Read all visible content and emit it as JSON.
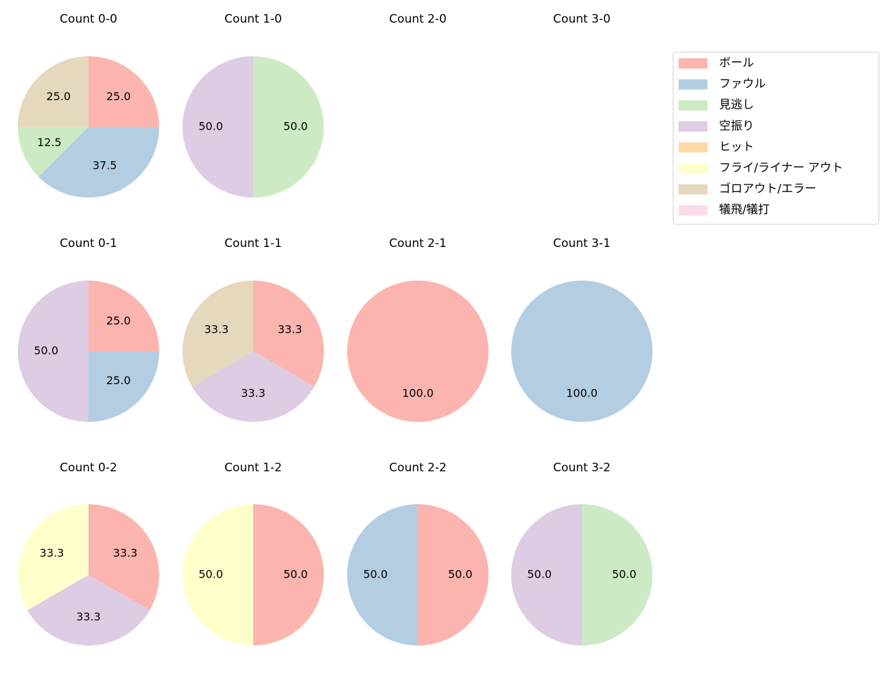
{
  "legend": {
    "position": "upper right",
    "labels": [
      "ボール",
      "ファウル",
      "見逃し",
      "空振り",
      "ヒット",
      "フライ/ライナー アウト",
      "ゴロアウト/エラー",
      "犠飛/犠打"
    ],
    "colors": [
      "#fbb4ae",
      "#b3cde3",
      "#ccebc5",
      "#decbe4",
      "#fed9a6",
      "#ffffcc",
      "#e5d8bd",
      "#fddaec"
    ]
  },
  "chart_data": [
    {
      "type": "pie",
      "title": "Count 0-0",
      "values": [
        25,
        37.5,
        12.5,
        0,
        0,
        0,
        25,
        0
      ],
      "value_labels": [
        "25.0",
        "37.5",
        "12.5",
        null,
        null,
        null,
        "25.0",
        null
      ]
    },
    {
      "type": "pie",
      "title": "Count 1-0",
      "values": [
        0,
        0,
        50,
        50,
        0,
        0,
        0,
        0
      ],
      "value_labels": [
        null,
        null,
        "50.0",
        "50.0",
        null,
        null,
        null,
        null
      ]
    },
    {
      "type": "pie",
      "title": "Count 2-0"
    },
    {
      "type": "pie",
      "title": "Count 3-0"
    },
    {
      "type": "pie",
      "title": "Count 0-1",
      "values": [
        25,
        25,
        0,
        50,
        0,
        0,
        0,
        0
      ],
      "value_labels": [
        "25.0",
        "25.0",
        null,
        "50.0",
        null,
        null,
        null,
        null
      ]
    },
    {
      "type": "pie",
      "title": "Count 1-1",
      "values": [
        33.3,
        0,
        0,
        33.3,
        0,
        0,
        33.3,
        0
      ],
      "value_labels": [
        "33.3",
        null,
        null,
        "33.3",
        null,
        null,
        "33.3",
        null
      ]
    },
    {
      "type": "pie",
      "title": "Count 2-1",
      "values": [
        100,
        0,
        0,
        0,
        0,
        0,
        0,
        0
      ],
      "value_labels": [
        "100.0",
        null,
        null,
        null,
        null,
        null,
        null,
        null
      ]
    },
    {
      "type": "pie",
      "title": "Count 3-1",
      "values": [
        0,
        100,
        0,
        0,
        0,
        0,
        0,
        0
      ],
      "value_labels": [
        null,
        "100.0",
        null,
        null,
        null,
        null,
        null,
        null
      ]
    },
    {
      "type": "pie",
      "title": "Count 0-2",
      "values": [
        33.3,
        0,
        0,
        33.3,
        0,
        33.3,
        0,
        0
      ],
      "value_labels": [
        "33.3",
        null,
        null,
        "33.3",
        null,
        "33.3",
        null,
        null
      ]
    },
    {
      "type": "pie",
      "title": "Count 1-2",
      "values": [
        50,
        0,
        0,
        0,
        0,
        50,
        0,
        0
      ],
      "value_labels": [
        "50.0",
        null,
        null,
        null,
        null,
        "50.0",
        null,
        null
      ]
    },
    {
      "type": "pie",
      "title": "Count 2-2",
      "values": [
        50,
        50,
        0,
        0,
        0,
        0,
        0,
        0
      ],
      "value_labels": [
        "50.0",
        "50.0",
        null,
        null,
        null,
        null,
        null,
        null
      ]
    },
    {
      "type": "pie",
      "title": "Count 3-2",
      "values": [
        0,
        0,
        50,
        50,
        0,
        0,
        0,
        0
      ],
      "value_labels": [
        null,
        null,
        "50.0",
        "50.0",
        null,
        null,
        null,
        null
      ]
    }
  ]
}
